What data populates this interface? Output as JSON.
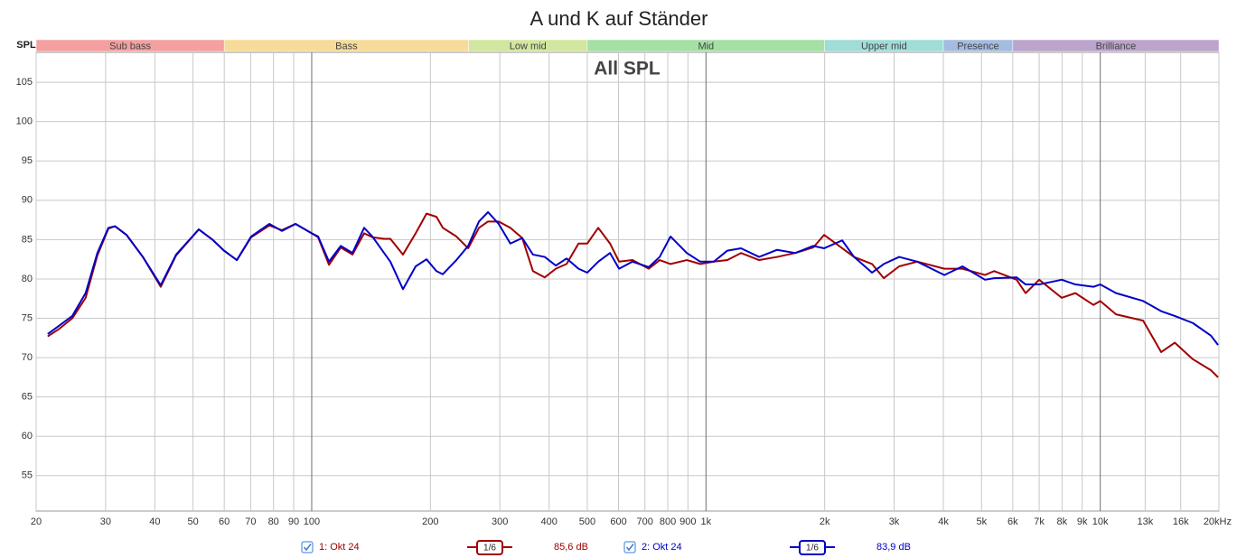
{
  "chart_data": {
    "type": "line",
    "title": "A und K auf Ständer",
    "annotation": "All SPL",
    "ylabel": "SPL",
    "log_x": true,
    "grid": true,
    "xlim": [
      20,
      20000
    ],
    "ylim": [
      50.5,
      108.8
    ],
    "xticks": [
      20,
      30,
      40,
      50,
      60,
      70,
      80,
      90,
      100,
      200,
      300,
      400,
      500,
      600,
      700,
      800,
      900,
      {
        "value": 1000,
        "label": "1k"
      },
      {
        "value": 2000,
        "label": "2k"
      },
      {
        "value": 3000,
        "label": "3k"
      },
      {
        "value": 4000,
        "label": "4k"
      },
      {
        "value": 5000,
        "label": "5k"
      },
      {
        "value": 6000,
        "label": "6k"
      },
      {
        "value": 7000,
        "label": "7k"
      },
      {
        "value": 8000,
        "label": "8k"
      },
      {
        "value": 9000,
        "label": "9k"
      },
      {
        "value": 10000,
        "label": "10k"
      },
      {
        "value": 13000,
        "label": "13k"
      },
      {
        "value": 16000,
        "label": "16k"
      },
      {
        "value": 20000,
        "label": "20kHz"
      }
    ],
    "yticks": [
      55,
      60,
      65,
      70,
      75,
      80,
      85,
      90,
      95,
      100,
      105
    ],
    "bands": [
      {
        "name": "Sub bass",
        "from": 20,
        "to": 60,
        "color": "#f4a0a0"
      },
      {
        "name": "Bass",
        "from": 60,
        "to": 250,
        "color": "#f6dc98"
      },
      {
        "name": "Low mid",
        "from": 250,
        "to": 500,
        "color": "#d2e6a0"
      },
      {
        "name": "Mid",
        "from": 500,
        "to": 2000,
        "color": "#a4e0a4"
      },
      {
        "name": "Upper mid",
        "from": 2000,
        "to": 4000,
        "color": "#a0dcd8"
      },
      {
        "name": "Presence",
        "from": 4000,
        "to": 6000,
        "color": "#a4bce0"
      },
      {
        "name": "Brilliance",
        "from": 6000,
        "to": 20000,
        "color": "#bca4cc"
      }
    ],
    "x": [
      21.4,
      22.8,
      24.7,
      26.7,
      28.6,
      30.5,
      31.7,
      33.9,
      37.3,
      41.4,
      45.3,
      51.7,
      56.0,
      59.9,
      64.6,
      70.2,
      78.1,
      84.0,
      91.0,
      100,
      103.8,
      110.6,
      118.5,
      126.9,
      135.8,
      142.5,
      152.6,
      158.3,
      170.4,
      183.5,
      195.5,
      207.2,
      215,
      232.8,
      249.3,
      265.6,
      280,
      298,
      319,
      342,
      364,
      390,
      416,
      443,
      475,
      500,
      533,
      571,
      602,
      651,
      716,
      763,
      813,
      894,
      967,
      1047,
      1133,
      1227,
      1364,
      1515,
      1684,
      1871,
      1994,
      2216,
      2374,
      2638,
      2825,
      3090,
      3434,
      4024,
      4472,
      5102,
      5378,
      6136,
      6468,
      7000,
      7988,
      8648,
      9608,
      10000,
      10966,
      12846,
      14276,
      15454,
      17172,
      19082,
      19904
    ],
    "series": [
      {
        "name": "1: Okt 24",
        "smoothing": "1/6",
        "level": "85,6 dB",
        "color": "#a00000",
        "values": [
          72.7,
          73.6,
          75.0,
          77.6,
          83.0,
          86.4,
          86.7,
          85.6,
          82.8,
          79.0,
          83.0,
          86.3,
          85.0,
          83.6,
          82.4,
          85.3,
          86.8,
          86.2,
          87.0,
          85.8,
          85.3,
          81.8,
          84.0,
          83.1,
          85.8,
          85.3,
          85.1,
          85.1,
          83.1,
          85.8,
          88.3,
          87.9,
          86.5,
          85.4,
          83.9,
          86.5,
          87.3,
          87.3,
          86.5,
          85.2,
          81.0,
          80.2,
          81.3,
          81.9,
          84.5,
          84.5,
          86.5,
          84.5,
          82.2,
          82.4,
          81.3,
          82.4,
          81.9,
          82.4,
          81.9,
          82.2,
          82.4,
          83.3,
          82.4,
          82.8,
          83.3,
          84.0,
          85.6,
          83.9,
          82.8,
          81.9,
          80.1,
          81.6,
          82.2,
          81.3,
          81.3,
          80.5,
          81.0,
          79.9,
          78.2,
          79.9,
          77.6,
          78.2,
          76.7,
          77.2,
          75.5,
          74.7,
          70.7,
          71.9,
          69.8,
          68.4,
          67.5
        ]
      },
      {
        "name": "2: Okt 24",
        "smoothing": "1/6",
        "level": "83,9 dB",
        "color": "#0000c8",
        "values": [
          73.0,
          74.0,
          75.3,
          78.2,
          83.3,
          86.5,
          86.7,
          85.6,
          82.8,
          79.2,
          83.1,
          86.3,
          85.0,
          83.6,
          82.4,
          85.4,
          87.0,
          86.1,
          87.0,
          85.8,
          85.4,
          82.2,
          84.2,
          83.3,
          86.5,
          85.4,
          83.3,
          82.2,
          78.7,
          81.6,
          82.5,
          81.0,
          80.6,
          82.4,
          84.2,
          87.3,
          88.5,
          87.0,
          84.5,
          85.2,
          83.1,
          82.8,
          81.7,
          82.6,
          81.3,
          80.8,
          82.2,
          83.3,
          81.3,
          82.2,
          81.5,
          82.8,
          85.4,
          83.3,
          82.2,
          82.2,
          83.6,
          83.9,
          82.8,
          83.7,
          83.3,
          84.2,
          83.9,
          84.9,
          82.8,
          80.8,
          81.9,
          82.8,
          82.2,
          80.5,
          81.6,
          79.9,
          80.1,
          80.2,
          79.3,
          79.3,
          79.9,
          79.3,
          79.0,
          79.3,
          78.2,
          77.2,
          75.9,
          75.3,
          74.4,
          72.8,
          71.6
        ]
      }
    ]
  }
}
